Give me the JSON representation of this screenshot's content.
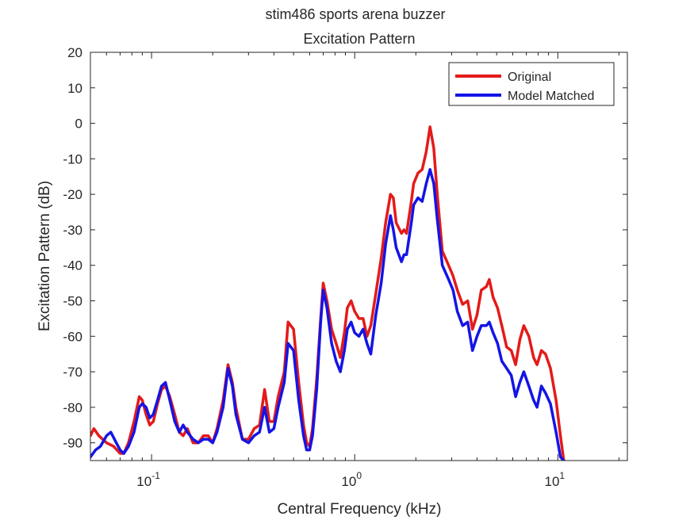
{
  "chart_data": {
    "type": "line",
    "title": "stim486 sports arena buzzer",
    "subtitle": "Excitation Pattern",
    "xlabel": "Central Frequency (kHz)",
    "ylabel": "Excitation Pattern (dB)",
    "x_scale": "log",
    "xlim": [
      0.05,
      22
    ],
    "ylim": [
      -95,
      20
    ],
    "x_ticks": [
      {
        "value": 0.1,
        "base": "10",
        "exp": "-1"
      },
      {
        "value": 1,
        "base": "10",
        "exp": "0"
      },
      {
        "value": 10,
        "base": "10",
        "exp": "1"
      }
    ],
    "y_ticks": [
      20,
      10,
      0,
      -10,
      -20,
      -30,
      -40,
      -50,
      -60,
      -70,
      -80,
      -90
    ],
    "grid": false,
    "legend_position": "top-right",
    "series": [
      {
        "name": "Original",
        "color": "#e41a1a",
        "points": [
          [
            0.05,
            -88
          ],
          [
            0.052,
            -86
          ],
          [
            0.055,
            -88
          ],
          [
            0.06,
            -90
          ],
          [
            0.065,
            -91
          ],
          [
            0.07,
            -93
          ],
          [
            0.073,
            -93
          ],
          [
            0.077,
            -90
          ],
          [
            0.082,
            -84
          ],
          [
            0.087,
            -77
          ],
          [
            0.09,
            -78
          ],
          [
            0.094,
            -82
          ],
          [
            0.098,
            -85
          ],
          [
            0.102,
            -84
          ],
          [
            0.107,
            -79
          ],
          [
            0.112,
            -75
          ],
          [
            0.117,
            -74
          ],
          [
            0.123,
            -77
          ],
          [
            0.13,
            -82
          ],
          [
            0.137,
            -87
          ],
          [
            0.143,
            -88
          ],
          [
            0.15,
            -86
          ],
          [
            0.16,
            -90
          ],
          [
            0.17,
            -90
          ],
          [
            0.18,
            -88
          ],
          [
            0.19,
            -88
          ],
          [
            0.2,
            -90
          ],
          [
            0.21,
            -86
          ],
          [
            0.225,
            -78
          ],
          [
            0.238,
            -68
          ],
          [
            0.25,
            -73
          ],
          [
            0.26,
            -80
          ],
          [
            0.28,
            -89
          ],
          [
            0.3,
            -89
          ],
          [
            0.32,
            -86
          ],
          [
            0.34,
            -85
          ],
          [
            0.36,
            -75
          ],
          [
            0.38,
            -84
          ],
          [
            0.4,
            -84
          ],
          [
            0.42,
            -77
          ],
          [
            0.45,
            -70
          ],
          [
            0.47,
            -56
          ],
          [
            0.5,
            -58
          ],
          [
            0.53,
            -73
          ],
          [
            0.56,
            -85
          ],
          [
            0.58,
            -90
          ],
          [
            0.6,
            -91
          ],
          [
            0.62,
            -86
          ],
          [
            0.65,
            -72
          ],
          [
            0.68,
            -55
          ],
          [
            0.7,
            -45
          ],
          [
            0.73,
            -50
          ],
          [
            0.77,
            -58
          ],
          [
            0.81,
            -62
          ],
          [
            0.85,
            -66
          ],
          [
            0.89,
            -59
          ],
          [
            0.92,
            -52
          ],
          [
            0.96,
            -50
          ],
          [
            1.0,
            -53
          ],
          [
            1.05,
            -55
          ],
          [
            1.1,
            -55
          ],
          [
            1.15,
            -60
          ],
          [
            1.2,
            -57
          ],
          [
            1.27,
            -48
          ],
          [
            1.35,
            -38
          ],
          [
            1.42,
            -28
          ],
          [
            1.5,
            -20
          ],
          [
            1.55,
            -21
          ],
          [
            1.6,
            -28
          ],
          [
            1.7,
            -31
          ],
          [
            1.75,
            -30
          ],
          [
            1.8,
            -31
          ],
          [
            1.9,
            -22
          ],
          [
            1.95,
            -17
          ],
          [
            2.05,
            -14
          ],
          [
            2.15,
            -13
          ],
          [
            2.25,
            -8
          ],
          [
            2.35,
            -1
          ],
          [
            2.45,
            -7
          ],
          [
            2.55,
            -20
          ],
          [
            2.7,
            -36
          ],
          [
            2.9,
            -40
          ],
          [
            3.05,
            -43
          ],
          [
            3.2,
            -47
          ],
          [
            3.4,
            -51
          ],
          [
            3.6,
            -50
          ],
          [
            3.8,
            -58
          ],
          [
            4.0,
            -54
          ],
          [
            4.2,
            -47
          ],
          [
            4.45,
            -46
          ],
          [
            4.6,
            -44
          ],
          [
            4.8,
            -49
          ],
          [
            5.05,
            -52
          ],
          [
            5.3,
            -57
          ],
          [
            5.6,
            -63
          ],
          [
            5.9,
            -64
          ],
          [
            6.2,
            -68
          ],
          [
            6.5,
            -61
          ],
          [
            6.8,
            -57
          ],
          [
            7.2,
            -60
          ],
          [
            7.6,
            -66
          ],
          [
            7.9,
            -68
          ],
          [
            8.3,
            -64
          ],
          [
            8.7,
            -65
          ],
          [
            9.2,
            -69
          ],
          [
            9.8,
            -78
          ],
          [
            10.3,
            -88
          ],
          [
            10.7,
            -95
          ]
        ]
      },
      {
        "name": "Model Matched",
        "color": "#1414e6",
        "points": [
          [
            0.05,
            -94
          ],
          [
            0.053,
            -92
          ],
          [
            0.056,
            -91
          ],
          [
            0.06,
            -88
          ],
          [
            0.063,
            -87
          ],
          [
            0.067,
            -90
          ],
          [
            0.07,
            -92
          ],
          [
            0.073,
            -93
          ],
          [
            0.077,
            -91
          ],
          [
            0.082,
            -87
          ],
          [
            0.087,
            -80
          ],
          [
            0.09,
            -79
          ],
          [
            0.094,
            -80
          ],
          [
            0.098,
            -83
          ],
          [
            0.102,
            -82
          ],
          [
            0.107,
            -78
          ],
          [
            0.112,
            -74
          ],
          [
            0.117,
            -73
          ],
          [
            0.123,
            -78
          ],
          [
            0.13,
            -84
          ],
          [
            0.137,
            -87
          ],
          [
            0.143,
            -85
          ],
          [
            0.15,
            -87
          ],
          [
            0.16,
            -89
          ],
          [
            0.17,
            -90
          ],
          [
            0.18,
            -89
          ],
          [
            0.19,
            -89
          ],
          [
            0.2,
            -90
          ],
          [
            0.21,
            -87
          ],
          [
            0.225,
            -80
          ],
          [
            0.238,
            -69
          ],
          [
            0.25,
            -74
          ],
          [
            0.26,
            -82
          ],
          [
            0.28,
            -89
          ],
          [
            0.3,
            -90
          ],
          [
            0.32,
            -88
          ],
          [
            0.34,
            -87
          ],
          [
            0.36,
            -80
          ],
          [
            0.38,
            -87
          ],
          [
            0.4,
            -86
          ],
          [
            0.42,
            -80
          ],
          [
            0.45,
            -73
          ],
          [
            0.47,
            -62
          ],
          [
            0.5,
            -64
          ],
          [
            0.53,
            -78
          ],
          [
            0.56,
            -88
          ],
          [
            0.58,
            -92
          ],
          [
            0.6,
            -92
          ],
          [
            0.62,
            -88
          ],
          [
            0.65,
            -75
          ],
          [
            0.68,
            -56
          ],
          [
            0.7,
            -47
          ],
          [
            0.73,
            -52
          ],
          [
            0.77,
            -62
          ],
          [
            0.81,
            -67
          ],
          [
            0.85,
            -70
          ],
          [
            0.89,
            -64
          ],
          [
            0.92,
            -58
          ],
          [
            0.96,
            -56
          ],
          [
            1.0,
            -59
          ],
          [
            1.05,
            -60
          ],
          [
            1.1,
            -58
          ],
          [
            1.15,
            -62
          ],
          [
            1.2,
            -65
          ],
          [
            1.27,
            -54
          ],
          [
            1.35,
            -45
          ],
          [
            1.42,
            -34
          ],
          [
            1.5,
            -26
          ],
          [
            1.55,
            -30
          ],
          [
            1.6,
            -35
          ],
          [
            1.7,
            -39
          ],
          [
            1.75,
            -37
          ],
          [
            1.8,
            -37
          ],
          [
            1.9,
            -28
          ],
          [
            1.95,
            -23
          ],
          [
            2.05,
            -21
          ],
          [
            2.15,
            -22
          ],
          [
            2.25,
            -17
          ],
          [
            2.35,
            -13
          ],
          [
            2.45,
            -17
          ],
          [
            2.55,
            -27
          ],
          [
            2.7,
            -40
          ],
          [
            2.9,
            -44
          ],
          [
            3.05,
            -47
          ],
          [
            3.2,
            -53
          ],
          [
            3.4,
            -57
          ],
          [
            3.6,
            -56
          ],
          [
            3.8,
            -64
          ],
          [
            4.0,
            -60
          ],
          [
            4.2,
            -57
          ],
          [
            4.45,
            -57
          ],
          [
            4.6,
            -56
          ],
          [
            4.8,
            -59
          ],
          [
            5.05,
            -62
          ],
          [
            5.3,
            -67
          ],
          [
            5.6,
            -69
          ],
          [
            5.9,
            -71
          ],
          [
            6.2,
            -77
          ],
          [
            6.5,
            -73
          ],
          [
            6.8,
            -70
          ],
          [
            7.2,
            -74
          ],
          [
            7.6,
            -78
          ],
          [
            7.9,
            -80
          ],
          [
            8.3,
            -74
          ],
          [
            8.7,
            -76
          ],
          [
            9.2,
            -79
          ],
          [
            9.8,
            -87
          ],
          [
            10.3,
            -94
          ],
          [
            10.7,
            -95
          ]
        ]
      }
    ]
  }
}
